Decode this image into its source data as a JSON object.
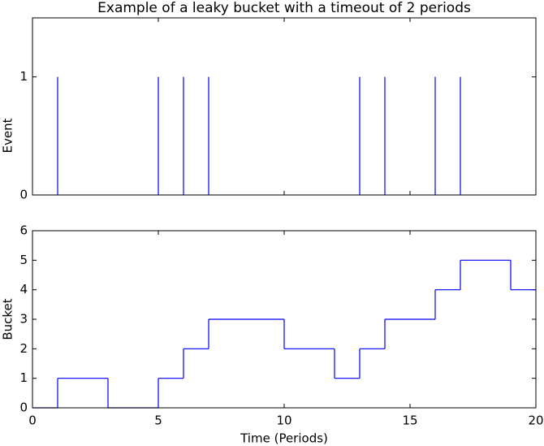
{
  "chart_data": [
    {
      "type": "event",
      "title": "Example of a leaky bucket with a timeout of 2 periods",
      "y_label": "Event",
      "x": [
        1,
        5,
        6,
        7,
        13,
        14,
        16,
        17
      ],
      "values": [
        1,
        1,
        1,
        1,
        1,
        1,
        1,
        1
      ],
      "color": "#0000ff",
      "xlim": [
        0,
        20
      ],
      "xticks": [
        0,
        5,
        10,
        15,
        20
      ],
      "ylim": [
        0,
        1.5
      ],
      "yticks": [
        0,
        1
      ]
    },
    {
      "type": "step",
      "x_label": "Time (Periods)",
      "y_label": "Bucket",
      "x": [
        0,
        1,
        2,
        3,
        4,
        5,
        6,
        7,
        8,
        9,
        10,
        11,
        12,
        13,
        14,
        15,
        16,
        17,
        18,
        19,
        20
      ],
      "values": [
        0,
        1,
        1,
        0,
        0,
        1,
        2,
        3,
        3,
        3,
        2,
        2,
        1,
        2,
        3,
        3,
        4,
        5,
        5,
        4,
        4
      ],
      "color": "#0000ff",
      "xlim": [
        0,
        20
      ],
      "xticks": [
        0,
        5,
        10,
        15,
        20
      ],
      "ylim": [
        0,
        6
      ],
      "yticks": [
        0,
        1,
        2,
        3,
        4,
        5,
        6
      ]
    }
  ]
}
